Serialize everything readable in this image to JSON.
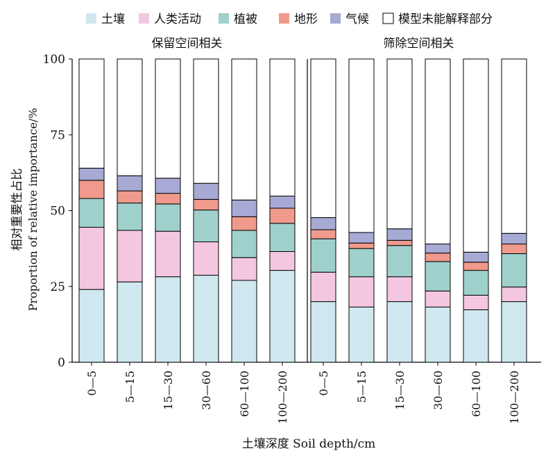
{
  "chart_data": {
    "type": "bar",
    "stacked": true,
    "ylabel_cn": "相对重要性占比",
    "ylabel_en": "Proportion of relative importance/%",
    "xlabel": "土壤深度 Soil depth/cm",
    "ylim": [
      0,
      100
    ],
    "yticks": [
      0,
      25,
      50,
      75,
      100
    ],
    "legend_position": "top",
    "series": [
      {
        "name": "土壤",
        "color": "#cfe8f0"
      },
      {
        "name": "人类活动",
        "color": "#f4c7e0"
      },
      {
        "name": "植被",
        "color": "#9fd0cc"
      },
      {
        "name": "地形",
        "color": "#ef9a8c"
      },
      {
        "name": "气候",
        "color": "#a6aad4"
      },
      {
        "name": "模型未能解释部分",
        "color": "#ffffff"
      }
    ],
    "panels": [
      {
        "title": "保留空间相关",
        "categories": [
          "0—5",
          "5—15",
          "15—30",
          "30—60",
          "60—100",
          "100—200"
        ],
        "values": [
          [
            24,
            20.5,
            9.5,
            6,
            4,
            36
          ],
          [
            26.5,
            17,
            9,
            4,
            5,
            38.5
          ],
          [
            28.2,
            15,
            9,
            3.5,
            5,
            39.3
          ],
          [
            28.7,
            11,
            10.5,
            3.5,
            5.3,
            41
          ],
          [
            27,
            7.5,
            9,
            4.5,
            5.5,
            46.5
          ],
          [
            30.3,
            6.2,
            9.3,
            5,
            4,
            45.2
          ]
        ]
      },
      {
        "title": "筛除空间相关",
        "categories": [
          "0—5",
          "5—15",
          "15—30",
          "30—60",
          "60—100",
          "100—200"
        ],
        "values": [
          [
            20,
            9.7,
            11,
            3,
            4,
            52.3
          ],
          [
            18.2,
            10,
            9.3,
            1.8,
            3.5,
            57.2
          ],
          [
            20,
            8.2,
            10.3,
            1.7,
            3.8,
            56
          ],
          [
            18.2,
            5.3,
            9.7,
            2.8,
            3,
            61
          ],
          [
            17.3,
            4.8,
            8.2,
            2.7,
            3.3,
            63.7
          ],
          [
            20,
            4.8,
            11,
            3.2,
            3.5,
            57.5
          ]
        ]
      }
    ]
  }
}
